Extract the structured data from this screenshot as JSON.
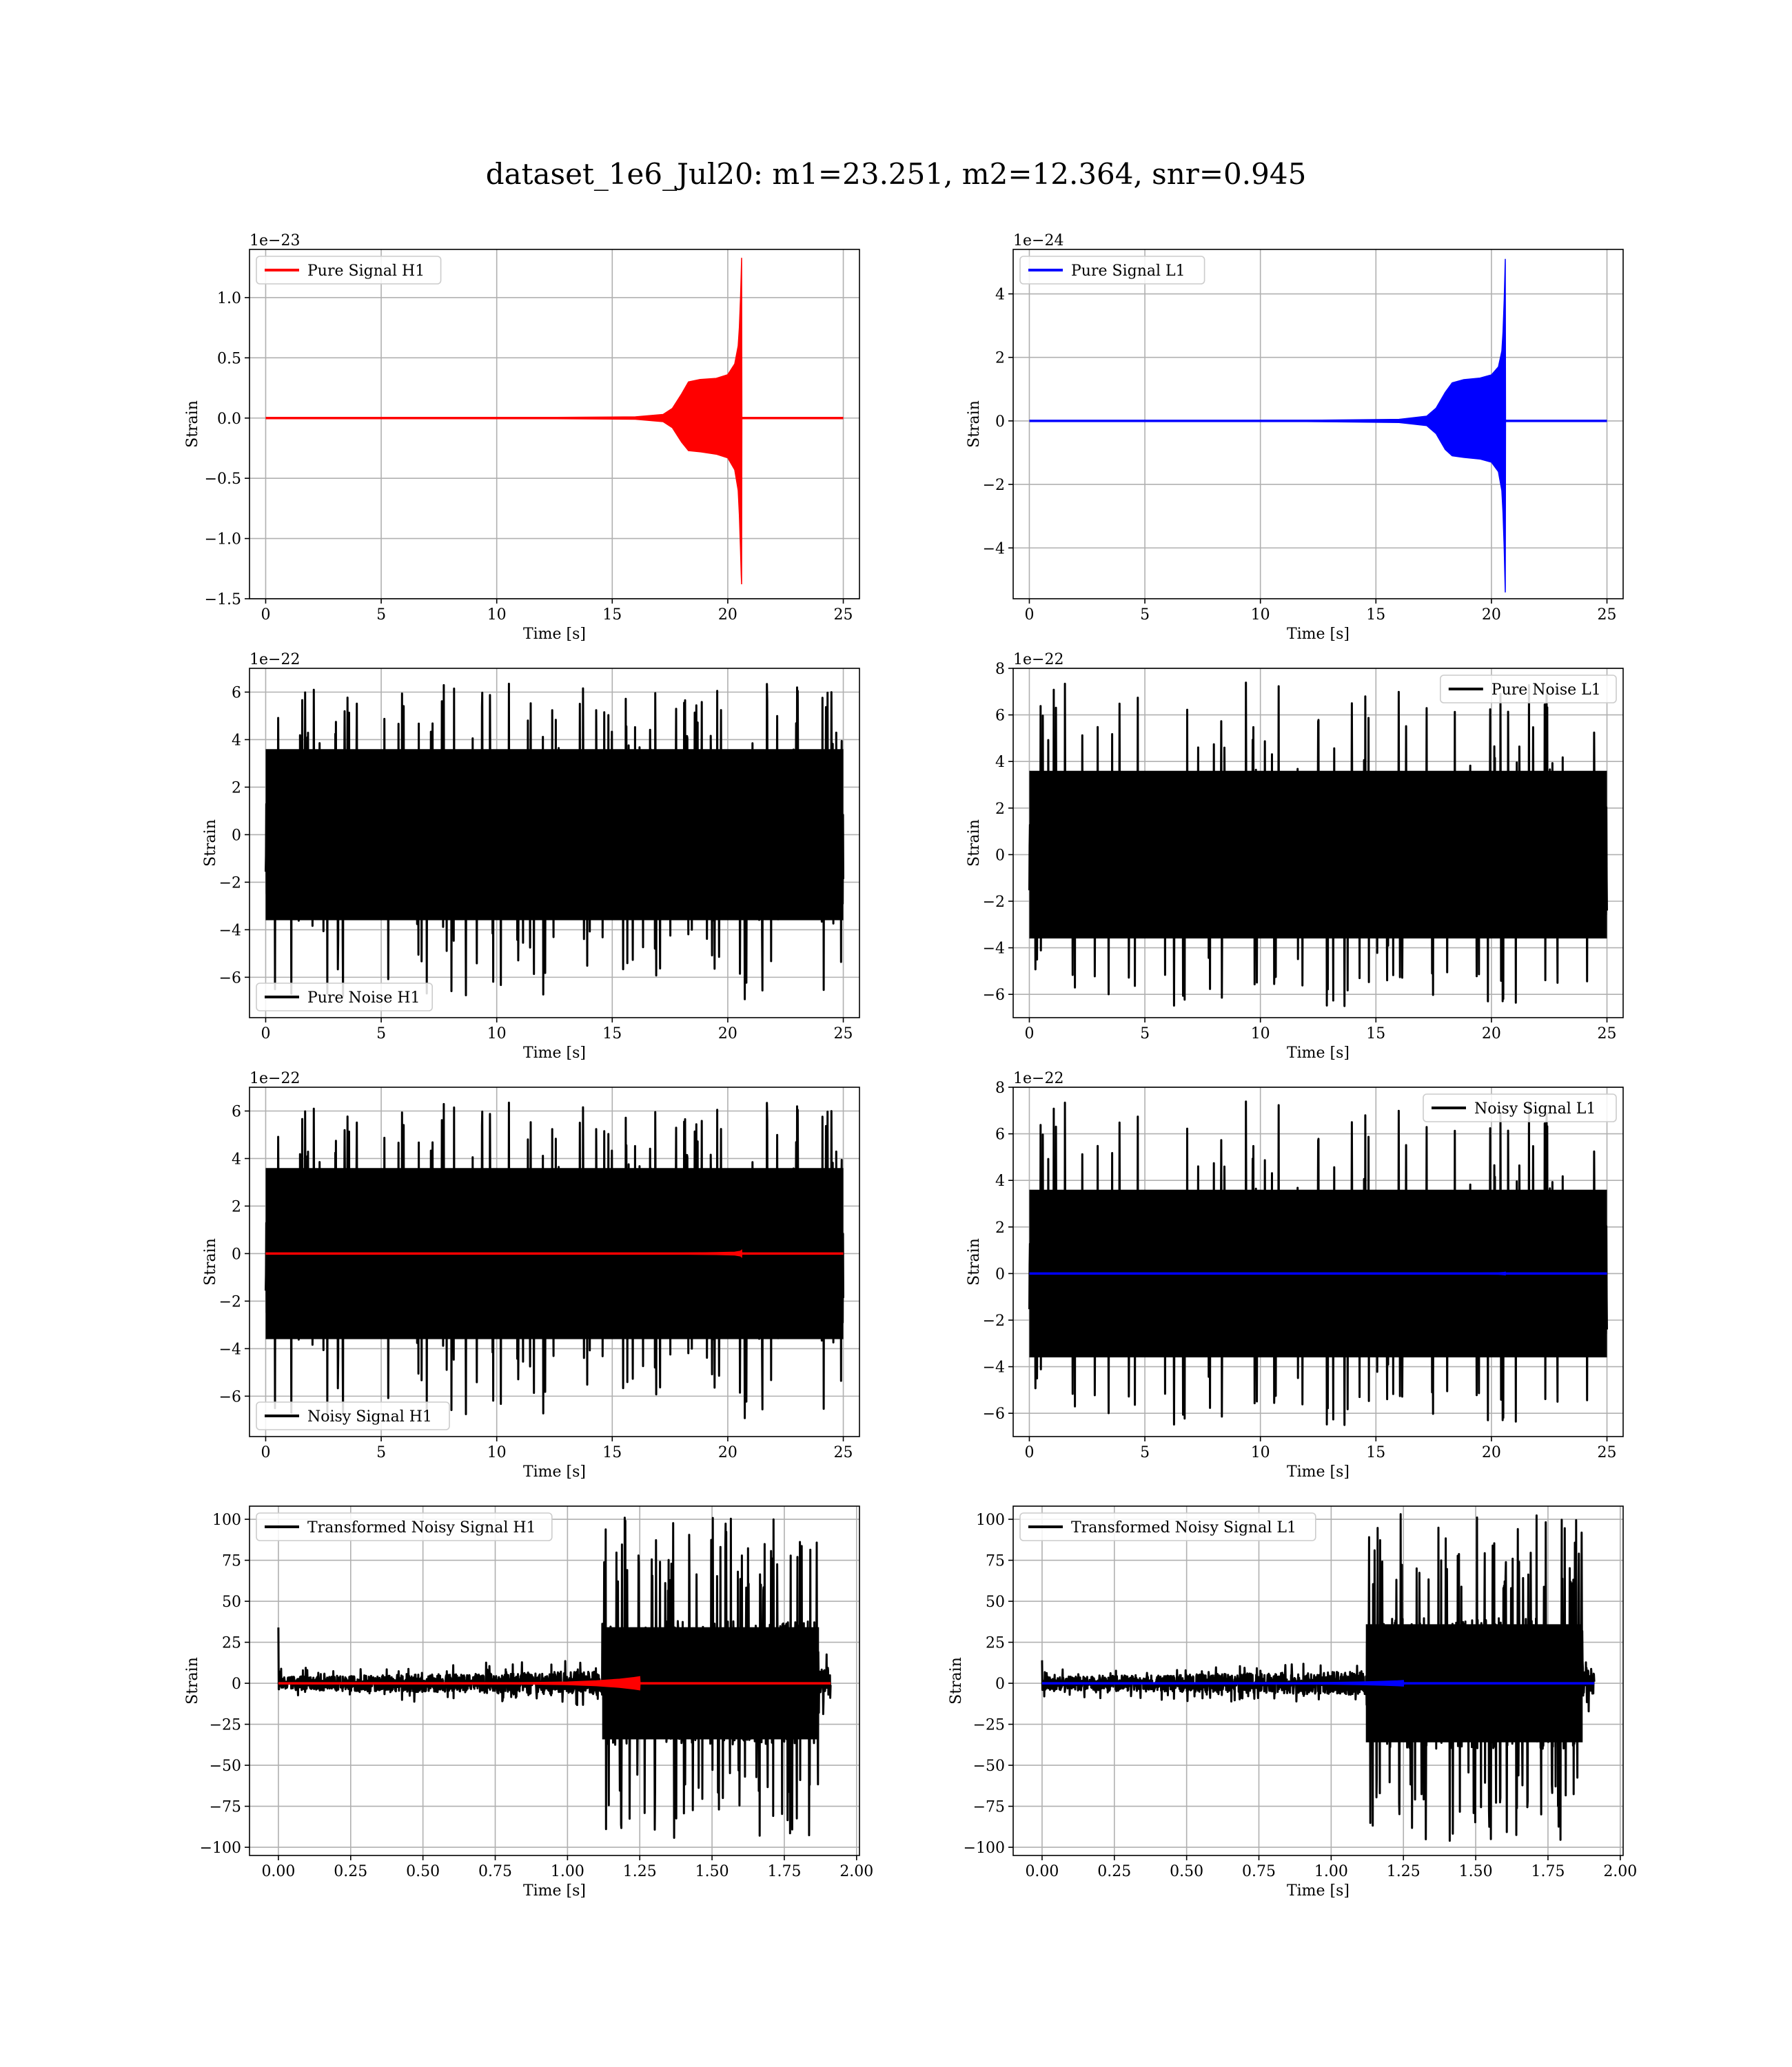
{
  "figure": {
    "title": "dataset_1e6_Jul20: m1=23.251, m2=12.364, snr=0.945"
  },
  "chart_data": [
    {
      "type": "line",
      "panel": "pure-signal-h1",
      "xlabel": "Time [s]",
      "ylabel": "Strain",
      "offset_text": "1e−23",
      "xlim": [
        -0.7,
        25.7
      ],
      "ylim": [
        -1.5,
        1.4
      ],
      "xticks": [
        0,
        5,
        10,
        15,
        20,
        25
      ],
      "xtick_labels": [
        "0",
        "5",
        "10",
        "15",
        "20",
        "25"
      ],
      "yticks": [
        -1.5,
        -1.0,
        -0.5,
        0.0,
        0.5,
        1.0
      ],
      "ytick_labels": [
        "−1.5",
        "−1.0",
        "−0.5",
        "0.0",
        "0.5",
        "1.0"
      ],
      "grid": true,
      "legend_position": "upper left",
      "series": [
        {
          "name": "Pure Signal H1",
          "color": "#ff0000",
          "kind": "chirp",
          "x": [
            0,
            12,
            16,
            17.2,
            17.6,
            18.0,
            18.3,
            18.8,
            19.5,
            20.0,
            20.3,
            20.45,
            20.5,
            20.55,
            20.58,
            20.6,
            20.61,
            25
          ],
          "upper": [
            0,
            0.005,
            0.01,
            0.03,
            0.08,
            0.2,
            0.3,
            0.32,
            0.33,
            0.36,
            0.45,
            0.6,
            0.75,
            1.0,
            1.2,
            1.33,
            0,
            0
          ],
          "lower": [
            0,
            -0.005,
            -0.01,
            -0.03,
            -0.08,
            -0.2,
            -0.27,
            -0.28,
            -0.3,
            -0.33,
            -0.43,
            -0.6,
            -0.8,
            -1.1,
            -1.3,
            -1.38,
            0,
            0
          ]
        }
      ]
    },
    {
      "type": "line",
      "panel": "pure-signal-l1",
      "xlabel": "Time [s]",
      "ylabel": "Strain",
      "offset_text": "1e−24",
      "xlim": [
        -0.7,
        25.7
      ],
      "ylim": [
        -5.6,
        5.4
      ],
      "xticks": [
        0,
        5,
        10,
        15,
        20,
        25
      ],
      "xtick_labels": [
        "0",
        "5",
        "10",
        "15",
        "20",
        "25"
      ],
      "yticks": [
        -4,
        -2,
        0,
        2,
        4
      ],
      "ytick_labels": [
        "−4",
        "−2",
        "0",
        "2",
        "4"
      ],
      "grid": true,
      "legend_position": "upper left",
      "series": [
        {
          "name": "Pure Signal L1",
          "color": "#0000ff",
          "kind": "chirp",
          "x": [
            0,
            12,
            16,
            17.2,
            17.6,
            18.0,
            18.3,
            18.8,
            19.5,
            20.0,
            20.3,
            20.45,
            20.5,
            20.55,
            20.58,
            20.6,
            20.61,
            25
          ],
          "upper": [
            0,
            0.02,
            0.05,
            0.15,
            0.4,
            0.9,
            1.2,
            1.3,
            1.35,
            1.45,
            1.7,
            2.2,
            2.8,
            3.8,
            4.6,
            5.1,
            0,
            0
          ],
          "lower": [
            0,
            -0.02,
            -0.05,
            -0.15,
            -0.4,
            -0.9,
            -1.1,
            -1.15,
            -1.2,
            -1.3,
            -1.6,
            -2.2,
            -2.9,
            -4.0,
            -4.9,
            -5.4,
            0,
            0
          ]
        }
      ]
    },
    {
      "type": "line",
      "panel": "pure-noise-h1",
      "xlabel": "Time [s]",
      "ylabel": "Strain",
      "offset_text": "1e−22",
      "xlim": [
        -0.7,
        25.7
      ],
      "ylim": [
        -7.7,
        7.0
      ],
      "xticks": [
        0,
        5,
        10,
        15,
        20,
        25
      ],
      "xtick_labels": [
        "0",
        "5",
        "10",
        "15",
        "20",
        "25"
      ],
      "yticks": [
        -6,
        -4,
        -2,
        0,
        2,
        4,
        6
      ],
      "ytick_labels": [
        "−6",
        "−4",
        "−2",
        "0",
        "2",
        "4",
        "6"
      ],
      "grid": true,
      "legend_position": "lower left",
      "series": [
        {
          "name": "Pure Noise H1",
          "color": "#000000",
          "kind": "noise",
          "t0": 0,
          "t1": 25,
          "band": 3.0,
          "amax": 6.4,
          "amin": -7.2,
          "seed": 11
        }
      ]
    },
    {
      "type": "line",
      "panel": "pure-noise-l1",
      "xlabel": "Time [s]",
      "ylabel": "Strain",
      "offset_text": "1e−22",
      "xlim": [
        -0.7,
        25.7
      ],
      "ylim": [
        -7.0,
        8.0
      ],
      "xticks": [
        0,
        5,
        10,
        15,
        20,
        25
      ],
      "xtick_labels": [
        "0",
        "5",
        "10",
        "15",
        "20",
        "25"
      ],
      "yticks": [
        -6,
        -4,
        -2,
        0,
        2,
        4,
        6,
        8
      ],
      "ytick_labels": [
        "−6",
        "−4",
        "−2",
        "0",
        "2",
        "4",
        "6",
        "8"
      ],
      "grid": true,
      "legend_position": "upper right",
      "series": [
        {
          "name": "Pure Noise L1",
          "color": "#000000",
          "kind": "noise",
          "t0": 0,
          "t1": 25,
          "band": 3.0,
          "amax": 7.4,
          "amin": -6.3,
          "seed": 23
        }
      ]
    },
    {
      "type": "line",
      "panel": "noisy-signal-h1",
      "xlabel": "Time [s]",
      "ylabel": "Strain",
      "offset_text": "1e−22",
      "xlim": [
        -0.7,
        25.7
      ],
      "ylim": [
        -7.7,
        7.0
      ],
      "xticks": [
        0,
        5,
        10,
        15,
        20,
        25
      ],
      "xtick_labels": [
        "0",
        "5",
        "10",
        "15",
        "20",
        "25"
      ],
      "yticks": [
        -6,
        -4,
        -2,
        0,
        2,
        4,
        6
      ],
      "ytick_labels": [
        "−6",
        "−4",
        "−2",
        "0",
        "2",
        "4",
        "6"
      ],
      "grid": true,
      "legend_position": "lower left",
      "series": [
        {
          "name": "Noisy Signal H1",
          "color": "#000000",
          "kind": "noise",
          "t0": 0,
          "t1": 25,
          "band": 3.0,
          "amax": 6.4,
          "amin": -7.2,
          "seed": 11
        },
        {
          "name": "",
          "color": "#ff0000",
          "kind": "chirp",
          "x": [
            0,
            16,
            18,
            19.5,
            20.3,
            20.55,
            20.6,
            20.61,
            25
          ],
          "upper": [
            0,
            0.005,
            0.02,
            0.04,
            0.06,
            0.1,
            0.14,
            0,
            0
          ],
          "lower": [
            0,
            -0.005,
            -0.02,
            -0.04,
            -0.06,
            -0.1,
            -0.14,
            0,
            0
          ]
        }
      ]
    },
    {
      "type": "line",
      "panel": "noisy-signal-l1",
      "xlabel": "Time [s]",
      "ylabel": "Strain",
      "offset_text": "1e−22",
      "xlim": [
        -0.7,
        25.7
      ],
      "ylim": [
        -7.0,
        8.0
      ],
      "xticks": [
        0,
        5,
        10,
        15,
        20,
        25
      ],
      "xtick_labels": [
        "0",
        "5",
        "10",
        "15",
        "20",
        "25"
      ],
      "yticks": [
        -6,
        -4,
        -2,
        0,
        2,
        4,
        6,
        8
      ],
      "ytick_labels": [
        "−6",
        "−4",
        "−2",
        "0",
        "2",
        "4",
        "6",
        "8"
      ],
      "grid": true,
      "legend_position": "upper right",
      "series": [
        {
          "name": "Noisy Signal L1",
          "color": "#000000",
          "kind": "noise",
          "t0": 0,
          "t1": 25,
          "band": 3.0,
          "amax": 7.4,
          "amin": -6.3,
          "seed": 23
        },
        {
          "name": "",
          "color": "#0000ff",
          "kind": "chirp",
          "x": [
            0,
            16,
            18,
            19.5,
            20.3,
            20.55,
            20.6,
            20.61,
            25
          ],
          "upper": [
            0,
            0.003,
            0.01,
            0.02,
            0.03,
            0.05,
            0.06,
            0,
            0
          ],
          "lower": [
            0,
            -0.003,
            -0.01,
            -0.02,
            -0.03,
            -0.05,
            -0.06,
            0,
            0
          ]
        }
      ]
    },
    {
      "type": "line",
      "panel": "transformed-noisy-signal-h1",
      "xlabel": "Time [s]",
      "ylabel": "Strain",
      "offset_text": "",
      "xlim": [
        -0.1,
        2.01
      ],
      "ylim": [
        -105,
        108
      ],
      "xticks": [
        0,
        0.25,
        0.5,
        0.75,
        1.0,
        1.25,
        1.5,
        1.75,
        2.0
      ],
      "xtick_labels": [
        "0.00",
        "0.25",
        "0.50",
        "0.75",
        "1.00",
        "1.25",
        "1.50",
        "1.75",
        "2.00"
      ],
      "yticks": [
        -100,
        -75,
        -50,
        -25,
        0,
        25,
        50,
        75,
        100
      ],
      "ytick_labels": [
        "−100",
        "−75",
        "−50",
        "−25",
        "0",
        "25",
        "50",
        "75",
        "100"
      ],
      "grid": true,
      "legend_position": "upper left",
      "series": [
        {
          "name": "Transformed Noisy Signal H1",
          "color": "#000000",
          "kind": "transformed",
          "t0": 0,
          "t1": 1.91,
          "tjump": 1.12,
          "tend": 1.87,
          "band_lo": 4,
          "peak_lo": 15,
          "band_hi": 38,
          "amax": 102,
          "amin": -95,
          "spike": 34,
          "seed": 31
        },
        {
          "name": "",
          "color": "#ff0000",
          "kind": "chirp",
          "x": [
            0,
            0.8,
            1.0,
            1.1,
            1.18,
            1.23,
            1.25,
            1.251,
            1.91
          ],
          "upper": [
            0,
            0.3,
            0.8,
            1.5,
            2.5,
            3.5,
            4,
            0,
            0
          ],
          "lower": [
            0,
            -0.3,
            -0.8,
            -1.5,
            -2.5,
            -3.5,
            -4,
            0,
            0
          ]
        }
      ]
    },
    {
      "type": "line",
      "panel": "transformed-noisy-signal-l1",
      "xlabel": "Time [s]",
      "ylabel": "Strain",
      "offset_text": "",
      "xlim": [
        -0.1,
        2.01
      ],
      "ylim": [
        -105,
        108
      ],
      "xticks": [
        0,
        0.25,
        0.5,
        0.75,
        1.0,
        1.25,
        1.5,
        1.75,
        2.0
      ],
      "xtick_labels": [
        "0.00",
        "0.25",
        "0.50",
        "0.75",
        "1.00",
        "1.25",
        "1.50",
        "1.75",
        "2.00"
      ],
      "yticks": [
        -100,
        -75,
        -50,
        -25,
        0,
        25,
        50,
        75,
        100
      ],
      "ytick_labels": [
        "−100",
        "−75",
        "−50",
        "−25",
        "0",
        "25",
        "50",
        "75",
        "100"
      ],
      "grid": true,
      "legend_position": "upper left",
      "series": [
        {
          "name": "Transformed Noisy Signal L1",
          "color": "#000000",
          "kind": "transformed",
          "t0": 0,
          "t1": 1.91,
          "tjump": 1.12,
          "tend": 1.87,
          "band_lo": 4,
          "peak_lo": 14,
          "band_hi": 40,
          "amax": 104,
          "amin": -97,
          "spike": 14,
          "seed": 47
        },
        {
          "name": "",
          "color": "#0000ff",
          "kind": "chirp",
          "x": [
            0,
            0.8,
            1.0,
            1.1,
            1.18,
            1.23,
            1.25,
            1.251,
            1.91
          ],
          "upper": [
            0,
            0.2,
            0.5,
            0.8,
            1.2,
            1.5,
            1.7,
            0,
            0
          ],
          "lower": [
            0,
            -0.2,
            -0.5,
            -0.8,
            -1.2,
            -1.5,
            -1.7,
            0,
            0
          ]
        }
      ]
    }
  ]
}
